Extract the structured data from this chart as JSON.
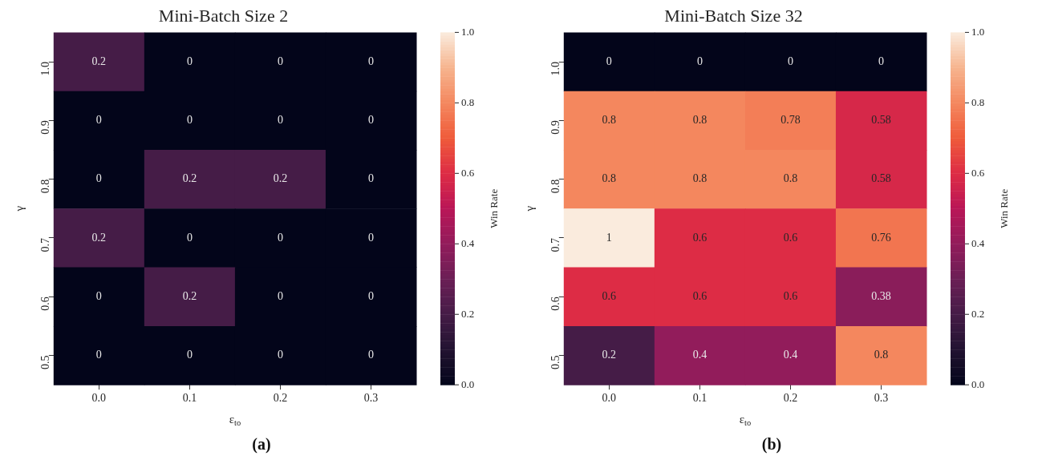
{
  "chart_data": [
    {
      "type": "heatmap",
      "title": "Mini-Batch Size 2",
      "xlabel": "ε$_{to}$",
      "ylabel": "γ",
      "clabel": "Win Rate",
      "categories": [
        "0.0",
        "0.1",
        "0.2",
        "0.3"
      ],
      "y_categories": [
        "1.0",
        "0.9",
        "0.8",
        "0.7",
        "0.6",
        "0.5"
      ],
      "cells": [
        [
          0.2,
          0,
          0,
          0
        ],
        [
          0,
          0,
          0,
          0
        ],
        [
          0,
          0.2,
          0.2,
          0
        ],
        [
          0.2,
          0,
          0,
          0
        ],
        [
          0,
          0.2,
          0,
          0
        ],
        [
          0,
          0,
          0,
          0
        ]
      ],
      "clim": [
        0,
        1
      ],
      "cticks": [
        {
          "value": 0,
          "label": "0.0"
        },
        {
          "value": 0.2,
          "label": "0.2"
        },
        {
          "value": 0.4,
          "label": "0.4"
        },
        {
          "value": 0.6,
          "label": "0.6"
        },
        {
          "value": 0.8,
          "label": "0.8"
        },
        {
          "value": 1,
          "label": "1.0"
        }
      ],
      "data_labels": true,
      "annotations": [
        "(a)"
      ]
    },
    {
      "type": "heatmap",
      "title": "Mini-Batch Size 32",
      "xlabel": "ε$_{to}$",
      "ylabel": "γ",
      "clabel": "Win Rate",
      "categories": [
        "0.0",
        "0.1",
        "0.2",
        "0.3"
      ],
      "y_categories": [
        "1.0",
        "0.9",
        "0.8",
        "0.7",
        "0.6",
        "0.5"
      ],
      "cells": [
        [
          0,
          0,
          0,
          0
        ],
        [
          0.8,
          0.8,
          0.78,
          0.58
        ],
        [
          0.8,
          0.8,
          0.8,
          0.58
        ],
        [
          1,
          0.6,
          0.6,
          0.76
        ],
        [
          0.6,
          0.6,
          0.6,
          0.38
        ],
        [
          0.2,
          0.4,
          0.4,
          0.8
        ]
      ],
      "clim": [
        0,
        1
      ],
      "cticks": [
        {
          "value": 0,
          "label": "0.0"
        },
        {
          "value": 0.2,
          "label": "0.2"
        },
        {
          "value": 0.4,
          "label": "0.4"
        },
        {
          "value": 0.6,
          "label": "0.6"
        },
        {
          "value": 0.8,
          "label": "0.8"
        },
        {
          "value": 1,
          "label": "1.0"
        }
      ],
      "data_labels": true,
      "annotations": [
        "(b)"
      ]
    }
  ]
}
